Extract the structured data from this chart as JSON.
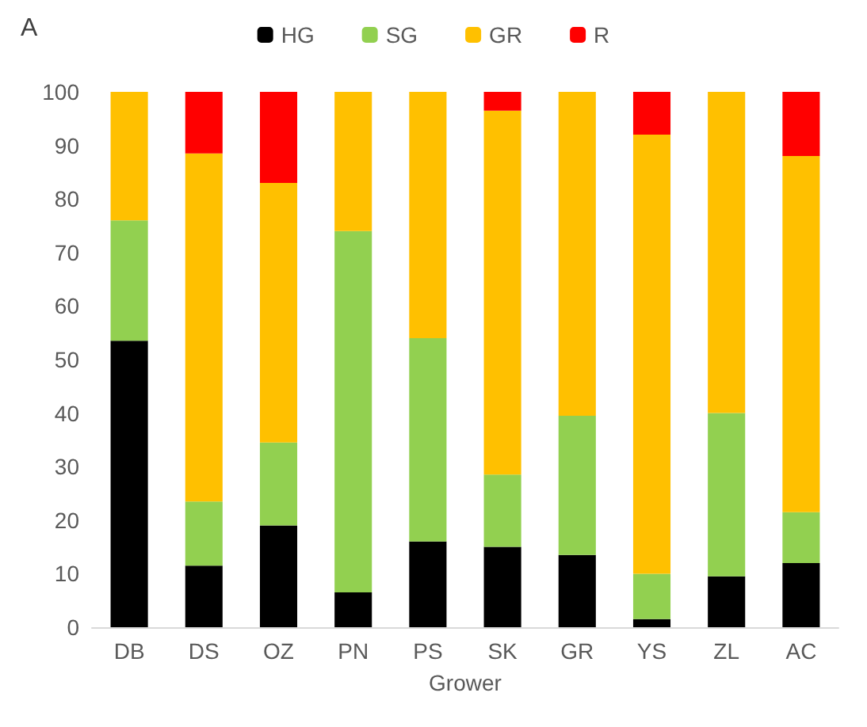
{
  "chart_data": {
    "type": "bar",
    "stacked": true,
    "xlabel": "Grower",
    "annotations": [
      "A"
    ],
    "categories": [
      "DB",
      "DS",
      "OZ",
      "PN",
      "PS",
      "SK",
      "GR",
      "YS",
      "ZL",
      "AC"
    ],
    "series": [
      {
        "name": "HG",
        "color": "#000000",
        "values": [
          53.5,
          11.5,
          19,
          6.5,
          16,
          15,
          13.5,
          1.5,
          9.5,
          12
        ]
      },
      {
        "name": "SG",
        "color": "#92d050",
        "values": [
          22.5,
          12,
          15.5,
          67.5,
          38,
          13.5,
          26,
          8.5,
          30.5,
          9.5
        ]
      },
      {
        "name": "GR",
        "color": "#ffc000",
        "values": [
          24,
          65,
          48.5,
          26,
          46,
          68,
          60.5,
          82,
          60,
          66.5
        ]
      },
      {
        "name": "R",
        "color": "#ff0000",
        "values": [
          0,
          11.5,
          17,
          0,
          0,
          3.5,
          0,
          8,
          0,
          12
        ]
      }
    ],
    "ylim": [
      0,
      100
    ],
    "yticks": [
      0,
      10,
      20,
      30,
      40,
      50,
      60,
      70,
      80,
      90,
      100
    ],
    "grid": false,
    "legend": "top"
  }
}
